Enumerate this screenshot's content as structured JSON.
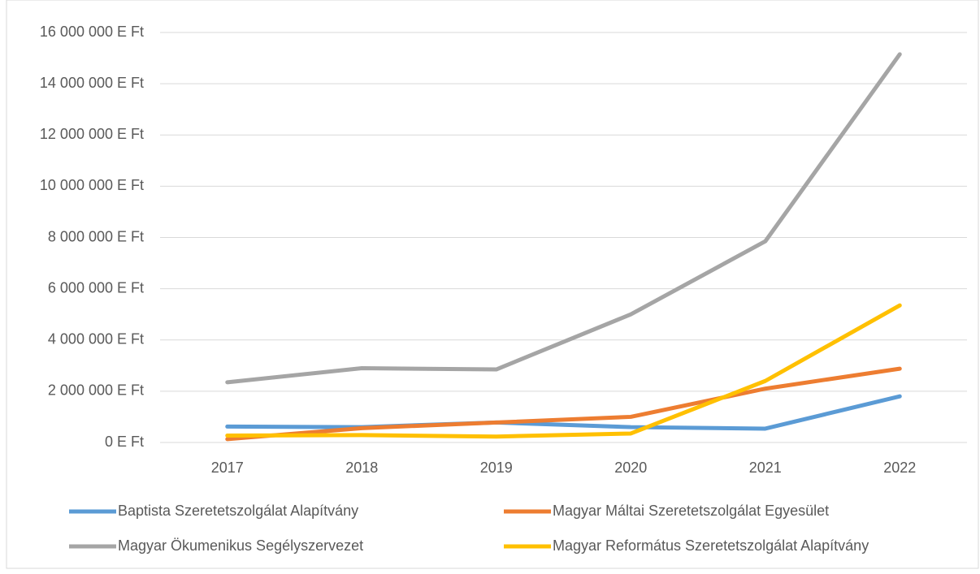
{
  "chart_data": {
    "type": "line",
    "categories": [
      "2017",
      "2018",
      "2019",
      "2020",
      "2021",
      "2022"
    ],
    "series": [
      {
        "name": "Baptista Szeretetszolgálat Alapítvány",
        "color": "#5b9bd5",
        "values": [
          620000,
          600000,
          780000,
          600000,
          540000,
          1800000
        ]
      },
      {
        "name": "Magyar Máltai Szeretetszolgálat Egyesület",
        "color": "#ed7d31",
        "values": [
          130000,
          560000,
          780000,
          1000000,
          2100000,
          2880000
        ]
      },
      {
        "name": "Magyar Ökumenikus Segélyszervezet",
        "color": "#a5a5a5",
        "values": [
          2350000,
          2900000,
          2850000,
          5000000,
          7850000,
          15150000
        ]
      },
      {
        "name": "Magyar Református Szeretetszolgálat Alapítvány",
        "color": "#ffc000",
        "values": [
          270000,
          290000,
          230000,
          350000,
          2400000,
          5350000
        ]
      }
    ],
    "ylim": [
      0,
      16000000
    ],
    "yticks": [
      {
        "value": 0,
        "label": "0 E Ft"
      },
      {
        "value": 2000000,
        "label": "2 000 000 E Ft"
      },
      {
        "value": 4000000,
        "label": "4 000 000 E Ft"
      },
      {
        "value": 6000000,
        "label": "6 000 000 E Ft"
      },
      {
        "value": 8000000,
        "label": "8 000 000 E Ft"
      },
      {
        "value": 10000000,
        "label": "10 000 000 E Ft"
      },
      {
        "value": 12000000,
        "label": "12 000 000 E Ft"
      },
      {
        "value": 14000000,
        "label": "14 000 000 E Ft"
      },
      {
        "value": 16000000,
        "label": "16 000 000 E Ft"
      }
    ],
    "grid": true
  }
}
